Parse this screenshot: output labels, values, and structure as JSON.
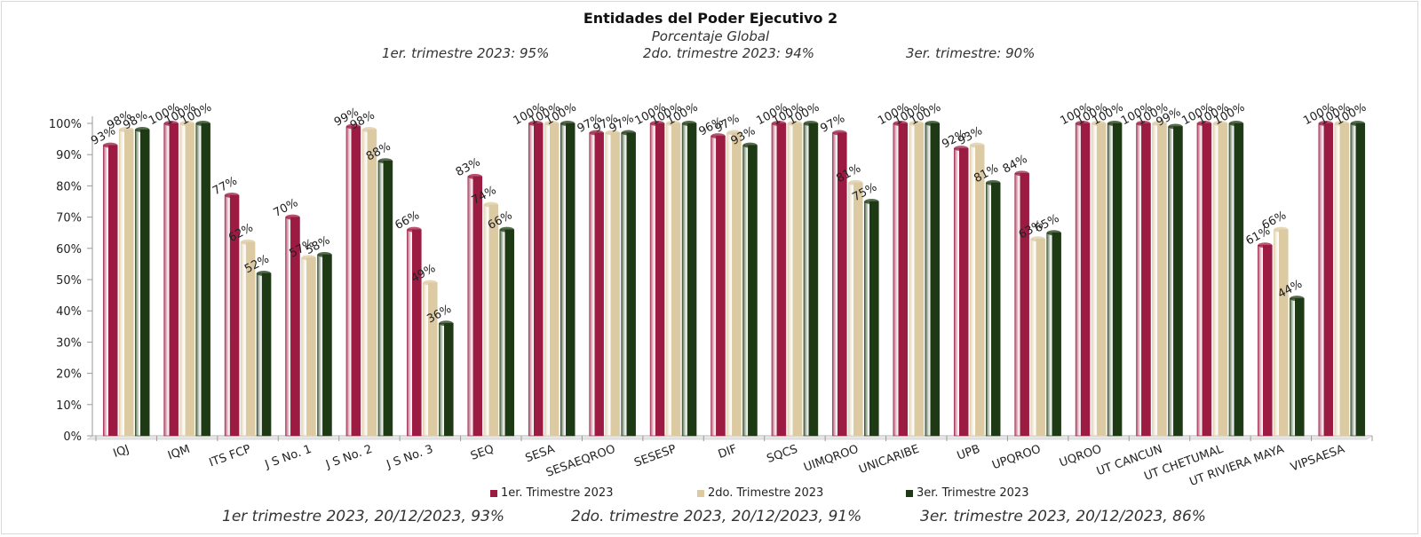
{
  "chart_data": {
    "type": "bar",
    "title": "Entidades del Poder Ejecutivo 2",
    "subtitle": "Porcentaje Global",
    "top_notes": [
      "1er. trimestre 2023: 95%",
      "2do. trimestre 2023: 94%",
      "3er. trimestre: 90%"
    ],
    "bottom_notes": [
      "1er trimestre  2023,  20/12/2023, 93%",
      "2do. trimestre 2023, 20/12/2023, 91%",
      "3er. trimestre 2023, 20/12/2023, 86%"
    ],
    "categories": [
      "IQJ",
      "IQM",
      "ITS FCP",
      "J S No. 1",
      "J S No. 2",
      "J S No. 3",
      "SEQ",
      "SESA",
      "SESAEQROO",
      "SESESP",
      "DIF",
      "SQCS",
      "UIMQROO",
      "UNICARIBE",
      "UPB",
      "UPQROO",
      "UQROO",
      "UT CANCUN",
      "UT CHETUMAL",
      "UT RIVIERA MAYA",
      "VIPSAESA"
    ],
    "series": [
      {
        "name": "1er. Trimestre 2023",
        "color": "#9b1b42",
        "values": [
          93,
          100,
          77,
          70,
          99,
          66,
          83,
          100,
          97,
          100,
          96,
          100,
          97,
          100,
          92,
          84,
          100,
          100,
          100,
          61,
          100
        ]
      },
      {
        "name": "2do. Trimestre 2023",
        "color": "#dccaa3",
        "values": [
          98,
          100,
          62,
          57,
          98,
          49,
          74,
          100,
          97,
          100,
          97,
          100,
          81,
          100,
          93,
          63,
          100,
          100,
          100,
          66,
          100
        ]
      },
      {
        "name": "3er. Trimestre 2023",
        "color": "#1e3a14",
        "values": [
          98,
          100,
          52,
          58,
          88,
          36,
          66,
          100,
          97,
          100,
          93,
          100,
          75,
          100,
          81,
          65,
          100,
          99,
          100,
          44,
          100
        ]
      }
    ],
    "y_ticks": [
      "0%",
      "10%",
      "20%",
      "30%",
      "40%",
      "50%",
      "60%",
      "70%",
      "80%",
      "90%",
      "100%"
    ],
    "ylim": [
      0,
      100
    ],
    "legend_position": "bottom",
    "grid": false
  }
}
